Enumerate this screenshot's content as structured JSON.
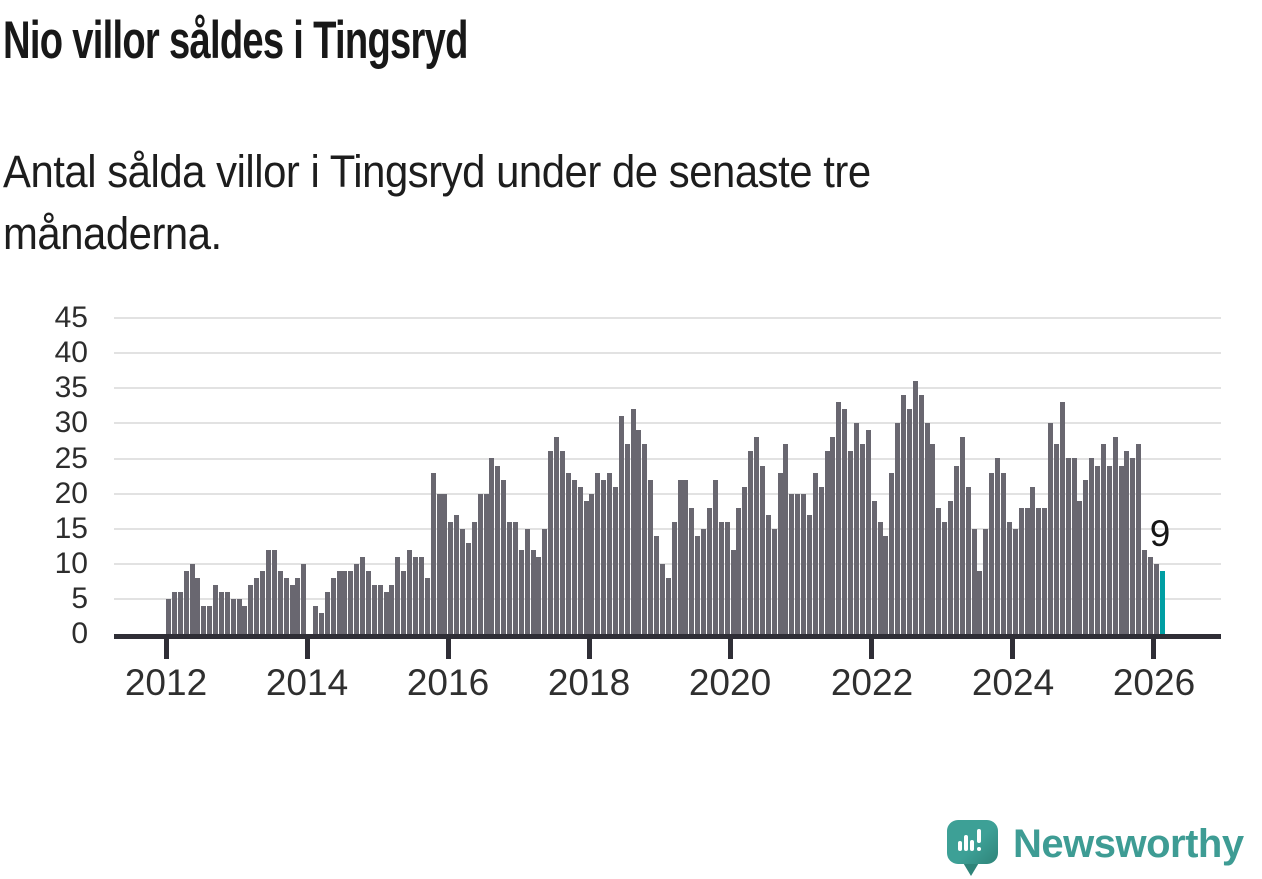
{
  "header": {
    "title": "Nio villor såldes i Tingsryd",
    "subtitle_line1": "Antal sålda villor i Tingsryd under de senaste tre",
    "subtitle_line2": "månaderna."
  },
  "chart_data": {
    "type": "bar",
    "title": "Nio villor såldes i Tingsryd",
    "subtitle": "Antal sålda villor i Tingsryd under de senaste tre månaderna.",
    "unit": "antal sålda villor (rullande 3 månader)",
    "frequency": "monthly",
    "x_start": "2012-01",
    "x_end": "2026-02",
    "x_tick_years": [
      2012,
      2014,
      2016,
      2018,
      2020,
      2022,
      2024,
      2026
    ],
    "y_ticks": [
      0,
      5,
      10,
      15,
      20,
      25,
      30,
      35,
      40,
      45
    ],
    "ylim": [
      0,
      45
    ],
    "grid": true,
    "legend": "none",
    "bar_color": "#696770",
    "highlight_color": "#009ea3",
    "highlight_last": true,
    "annotation": {
      "text": "9",
      "value": 9,
      "position": "above-last-bar"
    },
    "values": [
      5,
      6,
      6,
      9,
      10,
      8,
      4,
      4,
      7,
      6,
      6,
      5,
      5,
      4,
      7,
      8,
      9,
      12,
      12,
      9,
      8,
      7,
      8,
      10,
      0,
      4,
      3,
      6,
      8,
      9,
      9,
      9,
      10,
      11,
      9,
      7,
      7,
      6,
      7,
      11,
      9,
      12,
      11,
      11,
      8,
      23,
      20,
      20,
      16,
      17,
      15,
      13,
      16,
      20,
      20,
      25,
      24,
      22,
      16,
      16,
      12,
      15,
      12,
      11,
      15,
      26,
      28,
      26,
      23,
      22,
      21,
      19,
      20,
      23,
      22,
      23,
      21,
      31,
      27,
      32,
      29,
      27,
      22,
      14,
      10,
      8,
      16,
      22,
      22,
      18,
      14,
      15,
      18,
      22,
      16,
      16,
      12,
      18,
      21,
      26,
      28,
      24,
      17,
      15,
      23,
      27,
      20,
      20,
      20,
      17,
      23,
      21,
      26,
      28,
      33,
      32,
      26,
      30,
      27,
      29,
      19,
      16,
      14,
      23,
      30,
      34,
      32,
      36,
      34,
      30,
      27,
      18,
      16,
      19,
      24,
      28,
      21,
      15,
      9,
      15,
      23,
      25,
      23,
      16,
      15,
      18,
      18,
      21,
      18,
      18,
      30,
      27,
      33,
      25,
      25,
      19,
      22,
      25,
      24,
      27,
      24,
      28,
      24,
      26,
      25,
      27,
      12,
      11,
      10,
      9
    ]
  },
  "footer": {
    "brand": "Newsworthy",
    "brand_color": "#3e9c94",
    "logo_icon": "newsworthy-speech-bubble-bar-chart-icon"
  }
}
